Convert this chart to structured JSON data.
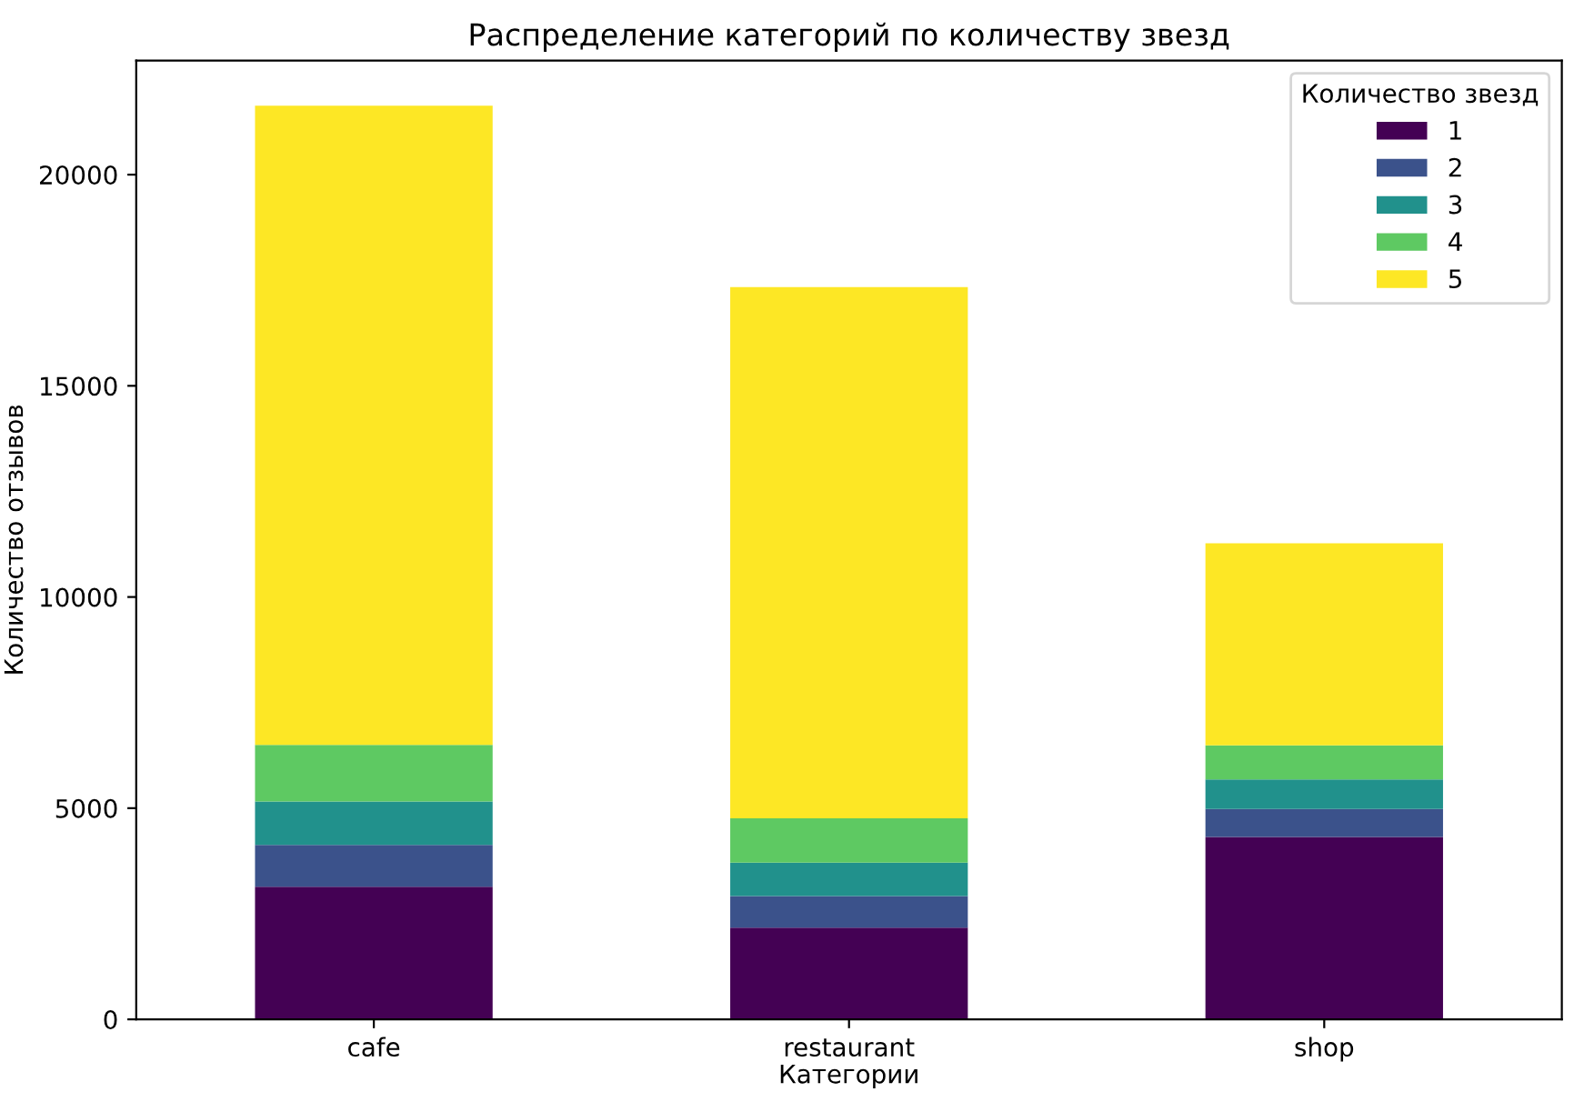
{
  "chart_data": {
    "type": "bar",
    "stacked": true,
    "title": "Распределение категорий по количеству звезд",
    "xlabel": "Категории",
    "ylabel": "Количество отзывов",
    "legend_title": "Количество звезд",
    "legend": "top right",
    "grid": false,
    "categories": [
      "cafe",
      "restaurant",
      "shop"
    ],
    "ylim": [
      0,
      22700
    ],
    "yticks": [
      0,
      5000,
      10000,
      15000,
      20000
    ],
    "series": [
      {
        "name": "1",
        "color": "#440154",
        "values": [
          3140,
          2170,
          4320
        ]
      },
      {
        "name": "2",
        "color": "#3b528b",
        "values": [
          990,
          750,
          660
        ]
      },
      {
        "name": "3",
        "color": "#21918c",
        "values": [
          1030,
          790,
          700
        ]
      },
      {
        "name": "4",
        "color": "#5ec962",
        "values": [
          1340,
          1050,
          810
        ]
      },
      {
        "name": "5",
        "color": "#fde725",
        "values": [
          15130,
          12580,
          4780
        ]
      }
    ]
  }
}
